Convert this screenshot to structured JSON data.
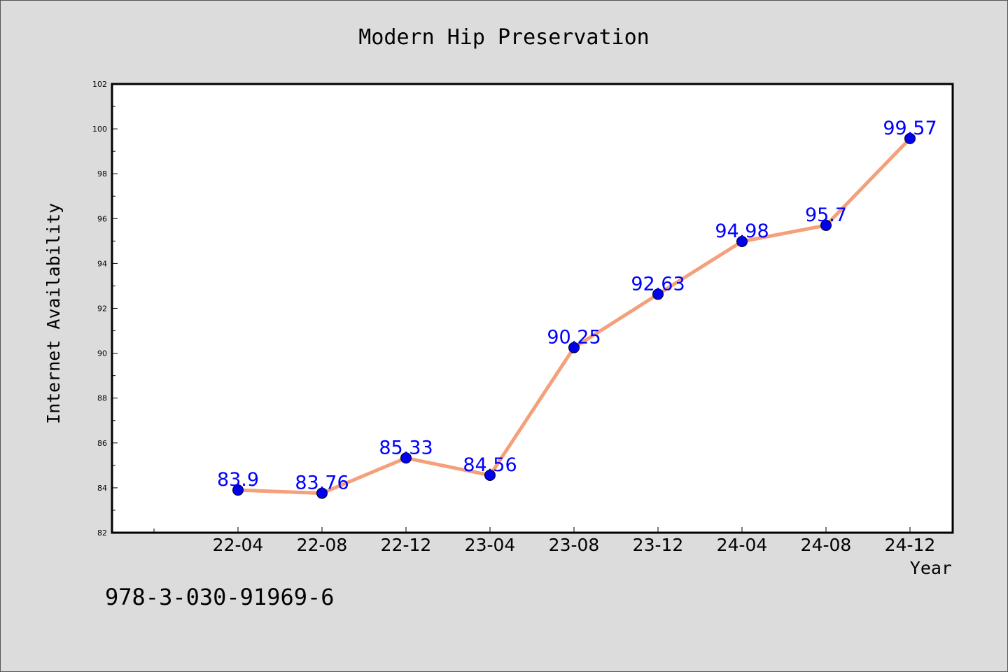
{
  "chart_data": {
    "type": "line",
    "title": "Modern Hip Preservation",
    "xlabel": "Year",
    "ylabel": "Internet Availability",
    "categories": [
      "22-04",
      "22-08",
      "22-12",
      "23-04",
      "23-08",
      "23-12",
      "24-04",
      "24-08",
      "24-12"
    ],
    "values": [
      83.9,
      83.76,
      85.33,
      84.56,
      90.25,
      92.63,
      94.98,
      95.7,
      99.57
    ],
    "data_labels": [
      "83.9",
      "83.76",
      "85.33",
      "84.56",
      "90.25",
      "92.63",
      "94.98",
      "95.7",
      "99.57"
    ],
    "ylim": [
      82,
      102
    ],
    "yticks": [
      82,
      84,
      86,
      88,
      90,
      92,
      94,
      96,
      98,
      100,
      102
    ],
    "grid": false,
    "line_color": "#f4a07a",
    "marker_color": "#0000ee",
    "label_color": "#0000ff"
  },
  "footer": {
    "isbn": "978-3-030-91969-6"
  }
}
